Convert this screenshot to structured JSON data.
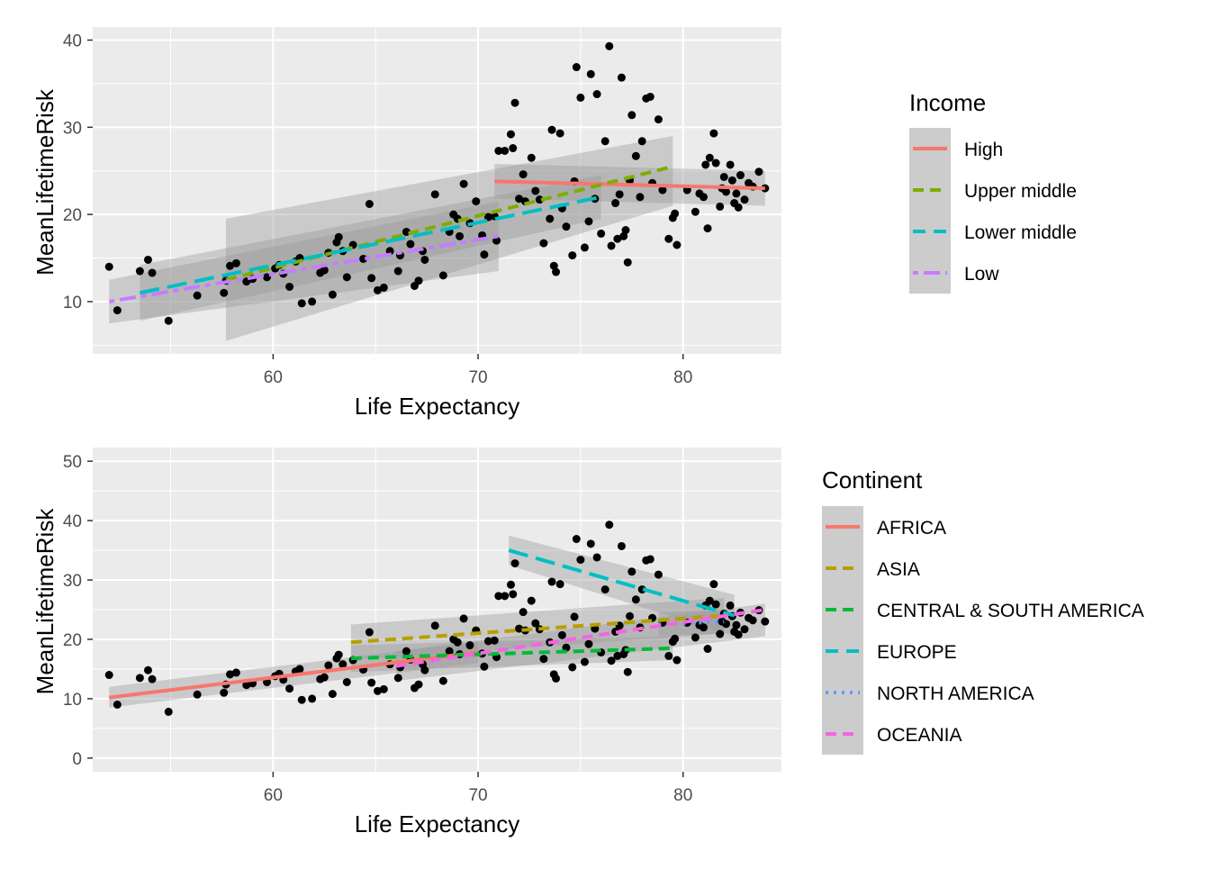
{
  "chart_data": [
    {
      "type": "scatter",
      "xlabel": "Life Expectancy",
      "ylabel": "MeanLifetimeRisk",
      "xlim": [
        51.2,
        84.8
      ],
      "ylim": [
        4.0,
        41.5
      ],
      "x_ticks": [
        60,
        70,
        80
      ],
      "y_ticks": [
        10,
        20,
        30,
        40
      ],
      "grid": true,
      "legend": {
        "title": "Income",
        "placement": "right",
        "entries": [
          {
            "label": "High",
            "color": "#F8766D",
            "dash": "solid"
          },
          {
            "label": "Upper middle",
            "color": "#7CAE00",
            "dash": "dashed"
          },
          {
            "label": "Lower middle",
            "color": "#00BFC4",
            "dash": "longdash"
          },
          {
            "label": "Low",
            "color": "#C77CFF",
            "dash": "twodash"
          }
        ]
      },
      "trend_lines": [
        {
          "label": "High",
          "x": [
            70.8,
            84.0
          ],
          "y": [
            23.8,
            23.0
          ],
          "band": [
            [
              21.8,
              25.8
            ],
            [
              21.0,
              25.0
            ]
          ],
          "color": "#F8766D"
        },
        {
          "label": "Upper middle",
          "x": [
            57.7,
            79.5
          ],
          "y": [
            12.5,
            25.5
          ],
          "band": [
            [
              5.5,
              19.5
            ],
            [
              21.0,
              29.0
            ]
          ],
          "color": "#7CAE00"
        },
        {
          "label": "Lower middle",
          "x": [
            53.5,
            76.0
          ],
          "y": [
            11.0,
            22.0
          ],
          "band": [
            [
              7.8,
              14.2
            ],
            [
              19.5,
              24.5
            ]
          ],
          "color": "#00BFC4"
        },
        {
          "label": "Low",
          "x": [
            52.0,
            71.0
          ],
          "y": [
            10.0,
            17.5
          ],
          "band": [
            [
              7.5,
              12.5
            ],
            [
              13.5,
              21.5
            ]
          ],
          "color": "#C77CFF"
        }
      ]
    },
    {
      "type": "scatter",
      "xlabel": "Life Expectancy",
      "ylabel": "MeanLifetimeRisk",
      "xlim": [
        51.2,
        84.8
      ],
      "ylim": [
        -2.3,
        52.3
      ],
      "x_ticks": [
        60,
        70,
        80
      ],
      "y_ticks": [
        0,
        10,
        20,
        30,
        40,
        50
      ],
      "grid": true,
      "legend": {
        "title": "Continent",
        "placement": "right",
        "entries": [
          {
            "label": "AFRICA",
            "color": "#F8766D",
            "dash": "solid"
          },
          {
            "label": "ASIA",
            "color": "#B79F00",
            "dash": "dashed"
          },
          {
            "label": "CENTRAL & SOUTH AMERICA",
            "color": "#00BA38",
            "dash": "dashed"
          },
          {
            "label": "EUROPE",
            "color": "#00BFC4",
            "dash": "longdash"
          },
          {
            "label": "NORTH AMERICA",
            "color": "#619CFF",
            "dash": "dotted"
          },
          {
            "label": "OCEANIA",
            "color": "#F564E3",
            "dash": "dashed"
          }
        ]
      },
      "trend_lines": [
        {
          "label": "AFRICA",
          "x": [
            52.0,
            70.0
          ],
          "y": [
            10.2,
            17.8
          ],
          "band": [
            [
              8.5,
              12.0
            ],
            [
              16.0,
              19.6
            ]
          ],
          "color": "#F8766D"
        },
        {
          "label": "ASIA",
          "x": [
            63.8,
            82.0
          ],
          "y": [
            19.5,
            24.0
          ],
          "band": [
            [
              16.5,
              22.5
            ],
            [
              21.0,
              27.0
            ]
          ],
          "color": "#B79F00"
        },
        {
          "label": "CENTRAL & SOUTH AMERICA",
          "x": [
            63.8,
            79.5
          ],
          "y": [
            16.8,
            18.5
          ],
          "band": [
            [
              14.5,
              19.0
            ],
            [
              16.5,
              20.5
            ]
          ],
          "color": "#00BA38"
        },
        {
          "label": "EUROPE",
          "x": [
            71.5,
            82.5
          ],
          "y": [
            35.0,
            24.0
          ],
          "band": [
            [
              32.5,
              37.5
            ],
            [
              20.5,
              27.5
            ]
          ],
          "color": "#00BFC4"
        },
        {
          "label": "NORTH AMERICA",
          "x": [
            78.8,
            82.0
          ],
          "y": [
            22.5,
            23.0
          ],
          "band": [
            [
              20.5,
              24.5
            ],
            [
              21.0,
              25.0
            ]
          ],
          "color": "#619CFF"
        },
        {
          "label": "OCEANIA",
          "x": [
            66.0,
            84.0
          ],
          "y": [
            15.5,
            25.0
          ],
          "band": [
            [
              13.0,
              18.0
            ],
            [
              20.5,
              26.0
            ]
          ],
          "color": "#F564E3"
        }
      ]
    }
  ],
  "points": [
    [
      52.0,
      14.0
    ],
    [
      52.4,
      9.0
    ],
    [
      53.5,
      13.5
    ],
    [
      53.9,
      14.8
    ],
    [
      54.1,
      13.3
    ],
    [
      54.9,
      7.8
    ],
    [
      56.3,
      10.7
    ],
    [
      57.6,
      11.0
    ],
    [
      57.7,
      12.4
    ],
    [
      57.9,
      14.1
    ],
    [
      58.2,
      14.4
    ],
    [
      58.7,
      12.3
    ],
    [
      59.0,
      12.6
    ],
    [
      59.7,
      12.8
    ],
    [
      60.1,
      13.8
    ],
    [
      60.3,
      14.2
    ],
    [
      60.5,
      13.2
    ],
    [
      60.8,
      11.7
    ],
    [
      61.1,
      14.6
    ],
    [
      61.3,
      15.0
    ],
    [
      61.4,
      9.8
    ],
    [
      61.9,
      10.0
    ],
    [
      62.3,
      13.3
    ],
    [
      62.5,
      13.6
    ],
    [
      62.7,
      15.6
    ],
    [
      62.9,
      10.8
    ],
    [
      63.1,
      16.8
    ],
    [
      63.2,
      17.4
    ],
    [
      63.4,
      15.8
    ],
    [
      63.6,
      12.8
    ],
    [
      63.9,
      16.5
    ],
    [
      64.4,
      14.9
    ],
    [
      64.7,
      21.2
    ],
    [
      64.8,
      12.7
    ],
    [
      65.1,
      11.3
    ],
    [
      65.4,
      11.6
    ],
    [
      65.7,
      15.8
    ],
    [
      66.1,
      13.5
    ],
    [
      66.2,
      15.3
    ],
    [
      66.5,
      18.0
    ],
    [
      66.7,
      16.6
    ],
    [
      66.9,
      11.8
    ],
    [
      67.1,
      12.4
    ],
    [
      67.3,
      15.8
    ],
    [
      67.4,
      14.8
    ],
    [
      67.9,
      22.3
    ],
    [
      68.3,
      13.0
    ],
    [
      68.6,
      18.0
    ],
    [
      68.8,
      20.0
    ],
    [
      69.0,
      19.5
    ],
    [
      69.1,
      17.5
    ],
    [
      69.3,
      23.5
    ],
    [
      69.6,
      19.0
    ],
    [
      69.9,
      21.5
    ],
    [
      70.2,
      17.6
    ],
    [
      70.3,
      15.4
    ],
    [
      70.5,
      19.7
    ],
    [
      70.8,
      19.8
    ],
    [
      70.9,
      17.0
    ],
    [
      71.0,
      27.3
    ],
    [
      71.3,
      27.3
    ],
    [
      71.6,
      29.2
    ],
    [
      71.7,
      27.6
    ],
    [
      71.8,
      32.8
    ],
    [
      72.0,
      21.8
    ],
    [
      72.2,
      24.6
    ],
    [
      72.3,
      21.5
    ],
    [
      72.6,
      26.5
    ],
    [
      72.8,
      22.7
    ],
    [
      73.0,
      21.7
    ],
    [
      73.2,
      16.7
    ],
    [
      73.5,
      19.5
    ],
    [
      73.6,
      29.7
    ],
    [
      73.7,
      14.1
    ],
    [
      73.8,
      13.4
    ],
    [
      74.0,
      29.3
    ],
    [
      74.1,
      20.7
    ],
    [
      74.3,
      18.6
    ],
    [
      74.6,
      15.3
    ],
    [
      74.7,
      23.8
    ],
    [
      74.8,
      36.9
    ],
    [
      75.0,
      33.4
    ],
    [
      75.2,
      16.2
    ],
    [
      75.4,
      19.2
    ],
    [
      75.5,
      36.1
    ],
    [
      75.7,
      21.8
    ],
    [
      75.8,
      33.8
    ],
    [
      76.0,
      17.8
    ],
    [
      76.2,
      28.4
    ],
    [
      76.4,
      39.3
    ],
    [
      76.5,
      16.4
    ],
    [
      76.7,
      21.3
    ],
    [
      76.8,
      17.2
    ],
    [
      76.9,
      22.3
    ],
    [
      77.0,
      35.7
    ],
    [
      77.1,
      17.5
    ],
    [
      77.2,
      18.2
    ],
    [
      77.3,
      14.5
    ],
    [
      77.4,
      23.9
    ],
    [
      77.5,
      31.4
    ],
    [
      77.7,
      26.7
    ],
    [
      77.9,
      22.0
    ],
    [
      78.0,
      28.4
    ],
    [
      78.2,
      33.3
    ],
    [
      78.4,
      33.5
    ],
    [
      78.5,
      23.6
    ],
    [
      78.8,
      30.9
    ],
    [
      79.0,
      22.8
    ],
    [
      79.3,
      17.2
    ],
    [
      79.5,
      19.6
    ],
    [
      79.6,
      20.1
    ],
    [
      79.7,
      16.5
    ],
    [
      80.2,
      22.8
    ],
    [
      80.6,
      20.3
    ],
    [
      80.8,
      22.4
    ],
    [
      81.0,
      22.0
    ],
    [
      81.1,
      25.7
    ],
    [
      81.2,
      18.4
    ],
    [
      81.3,
      26.5
    ],
    [
      81.5,
      29.3
    ],
    [
      81.6,
      25.9
    ],
    [
      81.8,
      20.9
    ],
    [
      81.9,
      23.0
    ],
    [
      82.0,
      24.3
    ],
    [
      82.1,
      22.6
    ],
    [
      82.3,
      25.7
    ],
    [
      82.4,
      23.9
    ],
    [
      82.5,
      21.3
    ],
    [
      82.6,
      22.4
    ],
    [
      82.7,
      20.8
    ],
    [
      82.8,
      24.5
    ],
    [
      83.0,
      21.7
    ],
    [
      83.2,
      23.6
    ],
    [
      83.4,
      23.2
    ],
    [
      83.7,
      24.9
    ],
    [
      84.0,
      23.0
    ]
  ]
}
